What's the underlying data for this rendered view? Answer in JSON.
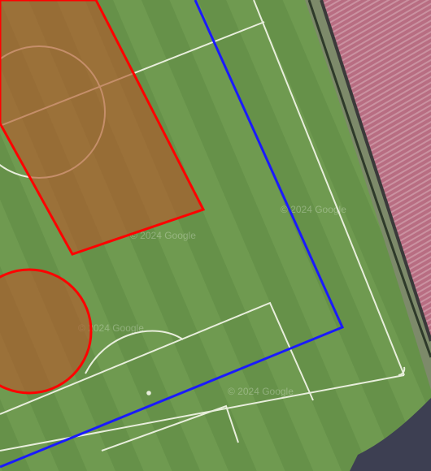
{
  "map": {
    "watermarks": [
      "© 2024 Google",
      "© 2024 Google",
      "© 2024 Google",
      "© 2024 Google"
    ]
  },
  "colors": {
    "grass_light": "#6f9a50",
    "grass_dark": "#5e8a43",
    "field_lines": "#e8eedc",
    "stand_seats": "#b86d82",
    "track": "#7d8a6a",
    "red_overlay_stroke": "#ff0000",
    "red_overlay_fill": "#b25a2c",
    "blue_boundary": "#1a1aff"
  }
}
